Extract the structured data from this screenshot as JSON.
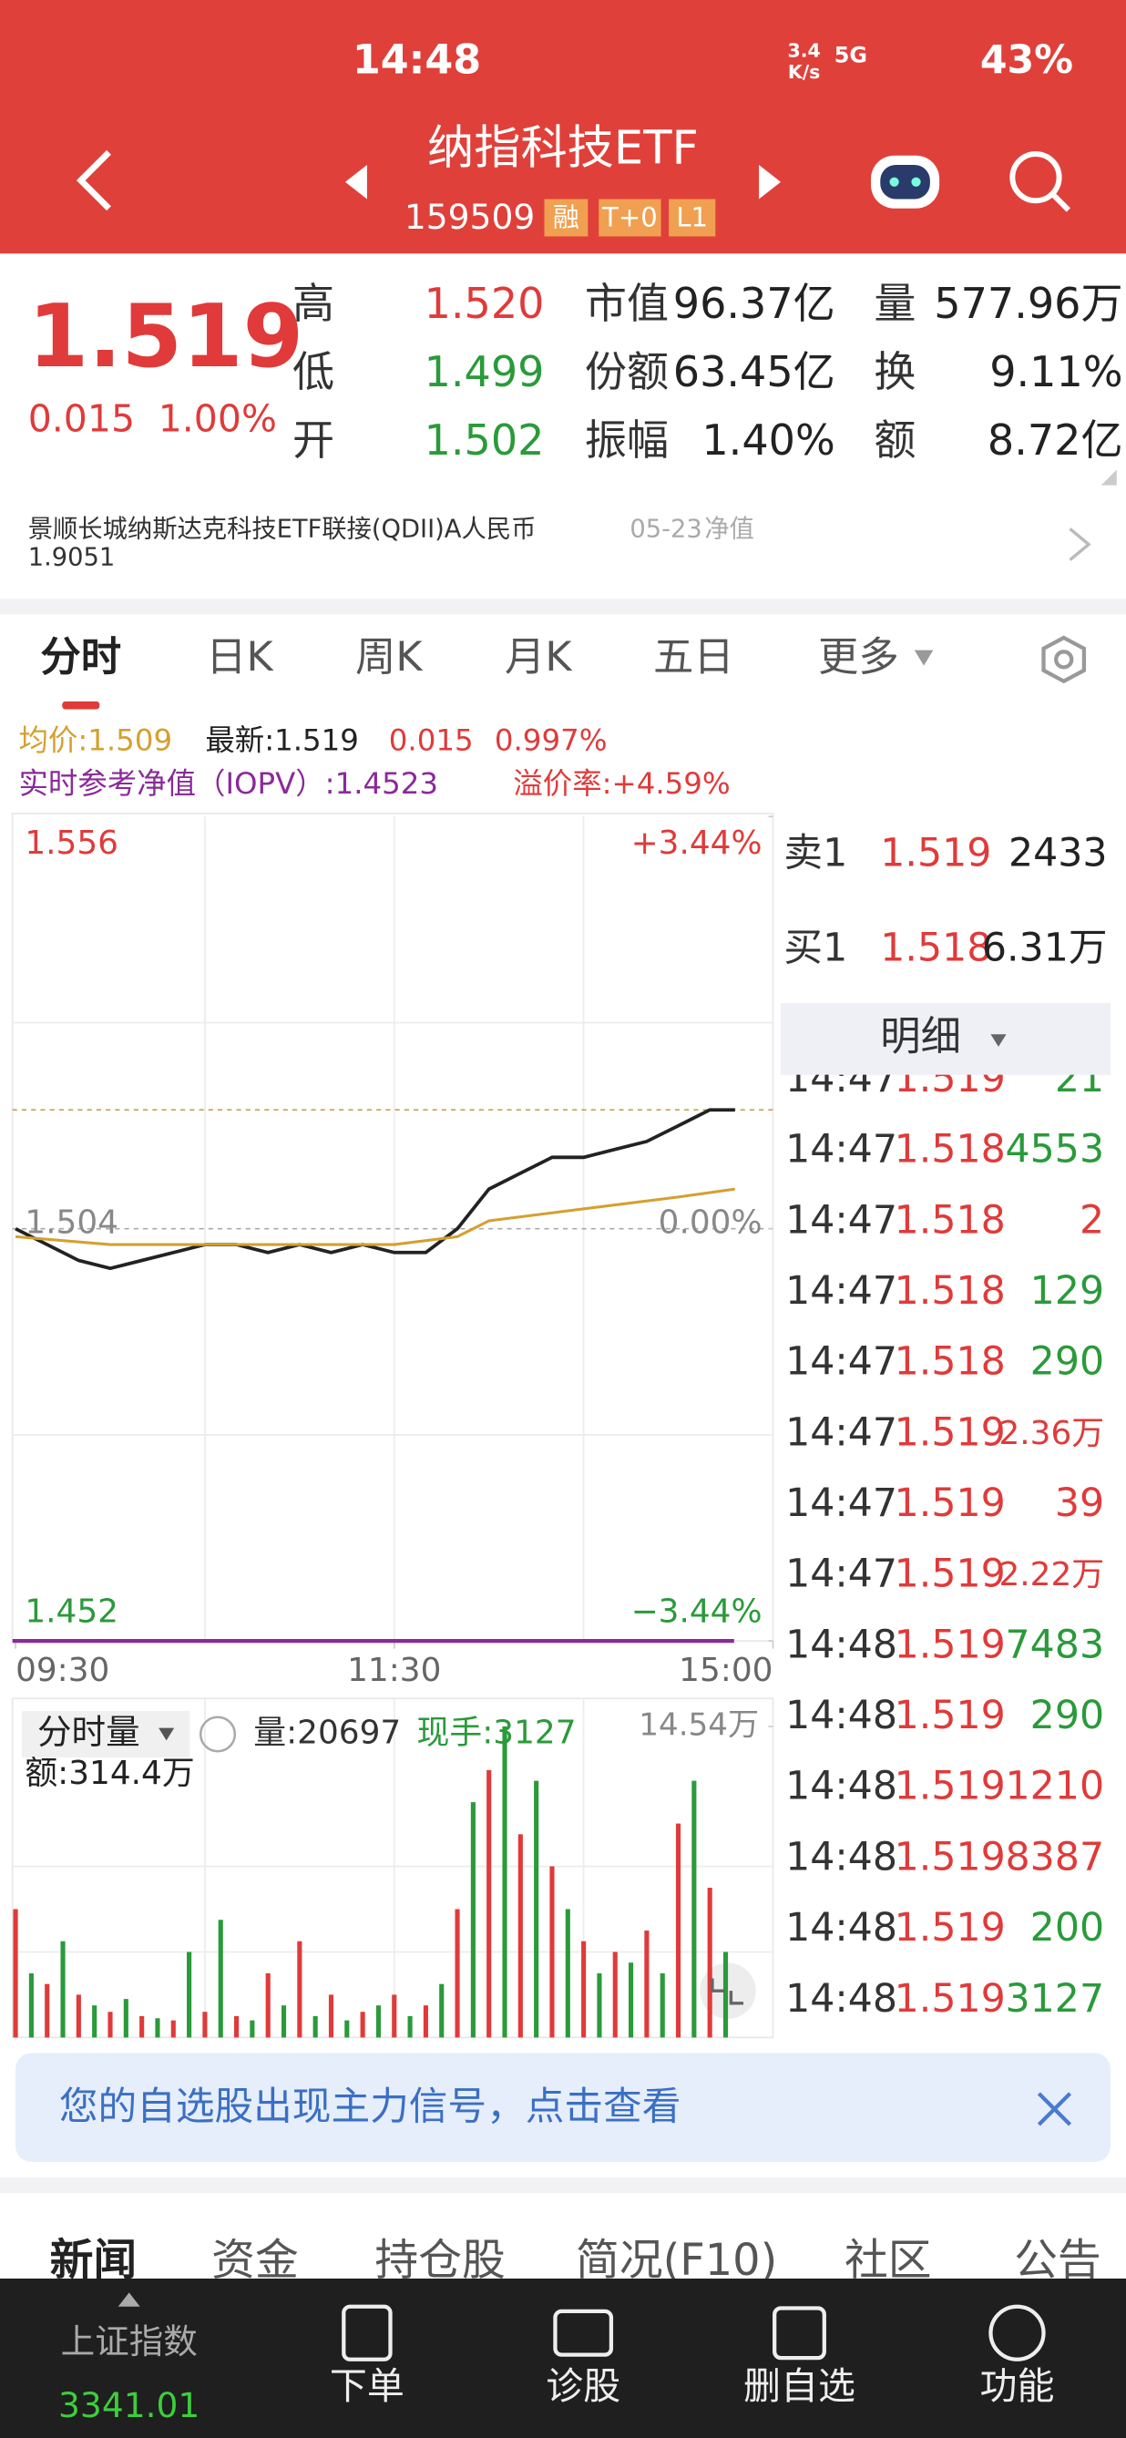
{
  "status_bar": {
    "time": "14:48",
    "speed": "3.4",
    "speed_unit": "K/s",
    "network": "5G",
    "battery": "43%"
  },
  "header": {
    "title": "纳指科技ETF",
    "code": "159509",
    "tags": [
      "融",
      "T+0",
      "L1"
    ]
  },
  "quote": {
    "price": "1.519",
    "change": "0.015",
    "change_pct": "1.00%",
    "stats": [
      {
        "label": "高",
        "value": "1.520",
        "color": "#e03a3a"
      },
      {
        "label": "低",
        "value": "1.499",
        "color": "#2a9a3a"
      },
      {
        "label": "开",
        "value": "1.502",
        "color": "#2a9a3a"
      },
      {
        "label": "市值",
        "value": "96.37亿",
        "color": "#222222"
      },
      {
        "label": "份额",
        "value": "63.45亿",
        "color": "#222222"
      },
      {
        "label": "振幅",
        "value": "1.40%",
        "color": "#222222"
      },
      {
        "label": "量",
        "value": "577.96万",
        "color": "#222222"
      },
      {
        "label": "换",
        "value": "9.11%",
        "color": "#222222"
      },
      {
        "label": "额",
        "value": "8.72亿",
        "color": "#222222"
      }
    ]
  },
  "fund_link": {
    "name": "景顺长城纳斯达克科技ETF联接(QDII)A人民币",
    "date": "05-23",
    "nav_label": "净值",
    "nav": "1.9051"
  },
  "tabs": {
    "items": [
      "分时",
      "日K",
      "周K",
      "月K",
      "五日",
      "更多"
    ]
  },
  "intraday_info": {
    "avg_price": "均价:1.509",
    "latest": "最新:1.519",
    "change": "0.015",
    "change_pct": "0.997%",
    "iopv": "实时参考净值（IOPV）:1.4523",
    "premium": "溢价率:+4.59%"
  },
  "chart_data": [
    {
      "type": "line",
      "ylim": [
        1.452,
        1.556
      ],
      "yticks": [
        1.556,
        1.504,
        1.452
      ],
      "y2lim": [
        -3.44,
        3.44
      ],
      "y2ticks": [
        {
          "value": 3.44,
          "label": "+3.44%"
        },
        {
          "value": 0,
          "label": "0.00%"
        },
        {
          "value": -3.44,
          "label": "−3.44%"
        }
      ],
      "xlim": [
        0,
        240
      ],
      "xticks": [
        {
          "value": 0,
          "label": "09:30"
        },
        {
          "value": 120,
          "label": "11:30"
        },
        {
          "value": 240,
          "label": "15:00"
        }
      ],
      "reference_line": 1.519,
      "series": [
        {
          "color": "#222222",
          "x": [
            0,
            5,
            10,
            20,
            30,
            40,
            50,
            60,
            70,
            80,
            90,
            100,
            110,
            120,
            130,
            140,
            150,
            160,
            170,
            180,
            190,
            200,
            210,
            220,
            228
          ],
          "values": [
            1.504,
            1.503,
            1.502,
            1.5,
            1.499,
            1.5,
            1.501,
            1.502,
            1.502,
            1.501,
            1.502,
            1.501,
            1.502,
            1.501,
            1.501,
            1.504,
            1.509,
            1.511,
            1.513,
            1.513,
            1.514,
            1.515,
            1.517,
            1.519,
            1.519
          ]
        },
        {
          "color": "#d4a030",
          "x": [
            0,
            30,
            60,
            90,
            120,
            140,
            150,
            170,
            190,
            210,
            228
          ],
          "values": [
            1.503,
            1.502,
            1.502,
            1.502,
            1.502,
            1.503,
            1.505,
            1.506,
            1.507,
            1.508,
            1.509
          ]
        }
      ]
    },
    {
      "type": "bar",
      "title": "分时量",
      "volume": "量:20697",
      "last_hand": "现手:3127",
      "amount": "额:314.4万",
      "ylim": [
        0,
        145400
      ],
      "yticks": [
        {
          "value": 145400,
          "label": "14.54万"
        }
      ],
      "xlim": [
        0,
        240
      ],
      "x": [
        0,
        5,
        10,
        15,
        20,
        25,
        30,
        35,
        40,
        45,
        50,
        55,
        60,
        65,
        70,
        75,
        80,
        85,
        90,
        95,
        100,
        105,
        110,
        115,
        120,
        125,
        130,
        135,
        140,
        145,
        150,
        155,
        160,
        165,
        170,
        175,
        180,
        185,
        190,
        195,
        200,
        205,
        210,
        215,
        220,
        225
      ],
      "values": [
        60000,
        30000,
        25000,
        45000,
        20000,
        15000,
        12000,
        18000,
        10000,
        9000,
        8000,
        40000,
        12000,
        55000,
        10000,
        8000,
        30000,
        15000,
        45000,
        10000,
        20000,
        8000,
        12000,
        15000,
        20000,
        10000,
        15000,
        25000,
        60000,
        110000,
        125000,
        145400,
        95000,
        120000,
        80000,
        60000,
        45000,
        30000,
        40000,
        35000,
        50000,
        30000,
        100000,
        120000,
        70000,
        40000
      ],
      "colors": [
        "#e03a3a",
        "#2a9a3a",
        "#e03a3a",
        "#2a9a3a",
        "#e03a3a",
        "#2a9a3a",
        "#e03a3a",
        "#2a9a3a",
        "#e03a3a",
        "#2a9a3a",
        "#e03a3a",
        "#2a9a3a",
        "#e03a3a",
        "#2a9a3a",
        "#e03a3a",
        "#2a9a3a",
        "#e03a3a",
        "#2a9a3a",
        "#e03a3a",
        "#2a9a3a",
        "#e03a3a",
        "#2a9a3a",
        "#e03a3a",
        "#2a9a3a",
        "#e03a3a",
        "#2a9a3a",
        "#e03a3a",
        "#2a9a3a",
        "#e03a3a",
        "#2a9a3a",
        "#e03a3a",
        "#2a9a3a",
        "#e03a3a",
        "#2a9a3a",
        "#e03a3a",
        "#2a9a3a",
        "#e03a3a",
        "#2a9a3a",
        "#e03a3a",
        "#2a9a3a",
        "#e03a3a",
        "#2a9a3a",
        "#e03a3a",
        "#2a9a3a",
        "#e03a3a",
        "#2a9a3a"
      ]
    }
  ],
  "order_book": {
    "rows": [
      {
        "label": "卖1",
        "price": "1.519",
        "volume": "2433"
      },
      {
        "label": "买1",
        "price": "1.518",
        "volume": "6.31万"
      }
    ],
    "detail_label": "明细",
    "trades": [
      {
        "time": "14:47",
        "price": "1.519",
        "volume": "21",
        "color": "#2a9a3a"
      },
      {
        "time": "14:47",
        "price": "1.518",
        "volume": "4553",
        "color": "#2a9a3a"
      },
      {
        "time": "14:47",
        "price": "1.518",
        "volume": "2",
        "color": "#e03a3a"
      },
      {
        "time": "14:47",
        "price": "1.518",
        "volume": "129",
        "color": "#2a9a3a"
      },
      {
        "time": "14:47",
        "price": "1.518",
        "volume": "290",
        "color": "#2a9a3a"
      },
      {
        "time": "14:47",
        "price": "1.519",
        "volume": "2.36万",
        "color": "#e03a3a"
      },
      {
        "time": "14:47",
        "price": "1.519",
        "volume": "39",
        "color": "#e03a3a"
      },
      {
        "time": "14:47",
        "price": "1.519",
        "volume": "2.22万",
        "color": "#e03a3a"
      },
      {
        "time": "14:48",
        "price": "1.519",
        "volume": "7483",
        "color": "#2a9a3a"
      },
      {
        "time": "14:48",
        "price": "1.519",
        "volume": "290",
        "color": "#2a9a3a"
      },
      {
        "time": "14:48",
        "price": "1.519",
        "volume": "1210",
        "color": "#e03a3a"
      },
      {
        "time": "14:48",
        "price": "1.519",
        "volume": "8387",
        "color": "#e03a3a"
      },
      {
        "time": "14:48",
        "price": "1.519",
        "volume": "200",
        "color": "#2a9a3a"
      },
      {
        "time": "14:48",
        "price": "1.519",
        "volume": "3127",
        "color": "#2a9a3a"
      }
    ]
  },
  "banner": {
    "text": "您的自选股出现主力信号，点击查看"
  },
  "bottom_tabs": [
    "新闻",
    "资金",
    "持仓股",
    "简况(F10)",
    "社区",
    "公告"
  ],
  "bottom_nav": {
    "index_name": "上证指数",
    "index_value": "3341.01",
    "items": [
      "下单",
      "诊股",
      "删自选",
      "功能"
    ]
  }
}
